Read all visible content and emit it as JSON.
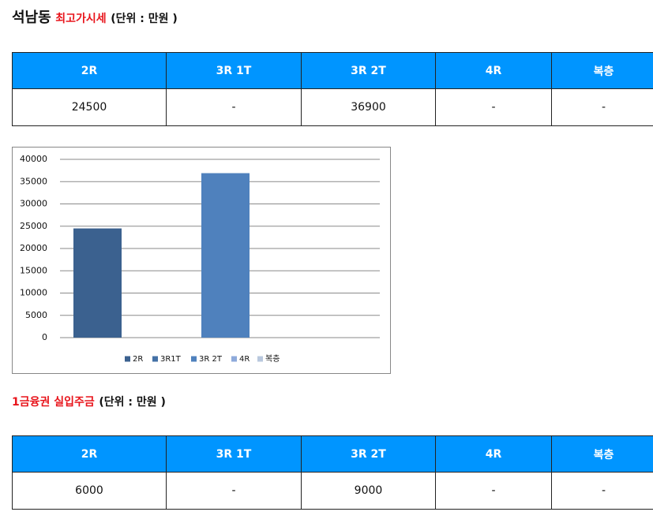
{
  "header": {
    "title": "석남동",
    "highlight": "최고가시세",
    "unit": "(단위 : 만원 )"
  },
  "table": {
    "columns": [
      "2R",
      "3R 1T",
      "3R 2T",
      "4R",
      "복층"
    ],
    "rows": [
      [
        24500,
        "-",
        36900,
        "-",
        "-"
      ]
    ]
  },
  "chart_data": {
    "type": "bar",
    "categories": [
      "2R",
      "3R1T",
      "3R 2T",
      "4R",
      "복층"
    ],
    "values": [
      24500,
      null,
      36900,
      null,
      null
    ],
    "colors": [
      "#3b618f",
      "#4471a6",
      "#4f81bd",
      "#8eaadb",
      "#b9c8de"
    ],
    "ylim": [
      0,
      40000
    ],
    "yticks": [
      0,
      5000,
      10000,
      15000,
      20000,
      25000,
      30000,
      35000,
      40000
    ],
    "grid": true,
    "legend": "bottom"
  },
  "section2": {
    "title": "1금융권 실입주금",
    "unit": "(단위 : 만원 )",
    "table": {
      "columns": [
        "2R",
        "3R 1T",
        "3R 2T",
        "4R",
        "복층"
      ],
      "rows": [
        [
          6000,
          "-",
          9000,
          "-",
          "-"
        ]
      ]
    }
  }
}
